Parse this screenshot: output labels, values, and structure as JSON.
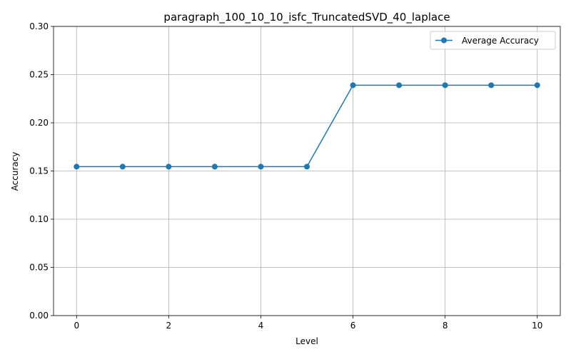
{
  "chart_data": {
    "type": "line",
    "title": "paragraph_100_10_10_isfc_TruncatedSVD_40_laplace",
    "xlabel": "Level",
    "ylabel": "Accuracy",
    "x": [
      0,
      1,
      2,
      3,
      4,
      5,
      6,
      7,
      8,
      9,
      10
    ],
    "series": [
      {
        "name": "Average Accuracy",
        "values": [
          0.1545,
          0.1545,
          0.1545,
          0.1545,
          0.1545,
          0.1545,
          0.239,
          0.239,
          0.239,
          0.239,
          0.239
        ],
        "color": "#1f77b4",
        "marker": "circle"
      }
    ],
    "xlim": [
      -0.5,
      10.5
    ],
    "ylim": [
      0.0,
      0.3
    ],
    "xticks": [
      0,
      2,
      4,
      6,
      8,
      10
    ],
    "xtick_labels": [
      "0",
      "2",
      "4",
      "6",
      "8",
      "10"
    ],
    "yticks": [
      0.0,
      0.05,
      0.1,
      0.15,
      0.2,
      0.25,
      0.3
    ],
    "ytick_labels": [
      "0.00",
      "0.05",
      "0.10",
      "0.15",
      "0.20",
      "0.25",
      "0.30"
    ],
    "grid": true,
    "legend_position": "top-right"
  }
}
